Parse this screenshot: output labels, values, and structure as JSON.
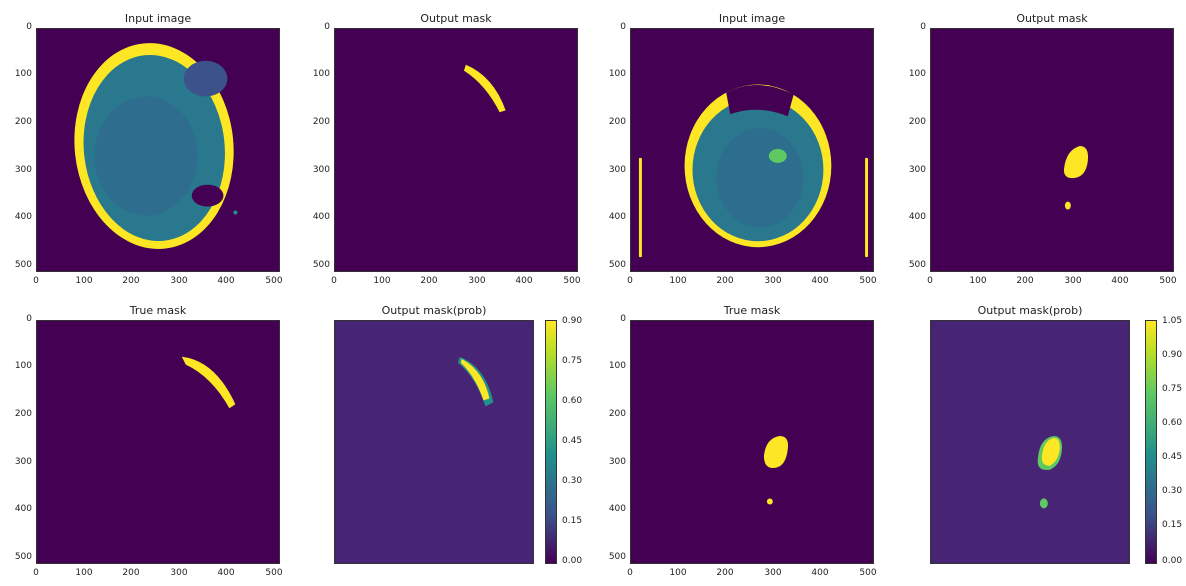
{
  "panels": [
    {
      "title": "Input image"
    },
    {
      "title": "Output mask"
    },
    {
      "title": "Input image"
    },
    {
      "title": "Output mask"
    },
    {
      "title": "True mask"
    },
    {
      "title": "Output mask(prob)"
    },
    {
      "title": "True mask"
    },
    {
      "title": "Output mask(prob)"
    }
  ],
  "axis": {
    "y_ticks": [
      "0",
      "100",
      "200",
      "300",
      "400",
      "500"
    ],
    "x_ticks": [
      "0",
      "100",
      "200",
      "300",
      "400",
      "500"
    ]
  },
  "colorbars": [
    {
      "ticks": [
        "0.90",
        "0.75",
        "0.60",
        "0.45",
        "0.30",
        "0.15",
        "0.00"
      ]
    },
    {
      "ticks": [
        "1.05",
        "0.90",
        "0.75",
        "0.60",
        "0.45",
        "0.30",
        "0.15",
        "0.00"
      ]
    }
  ],
  "colors": {
    "background": "#440154",
    "mask": "#fde725",
    "prob_background": "#482474"
  }
}
